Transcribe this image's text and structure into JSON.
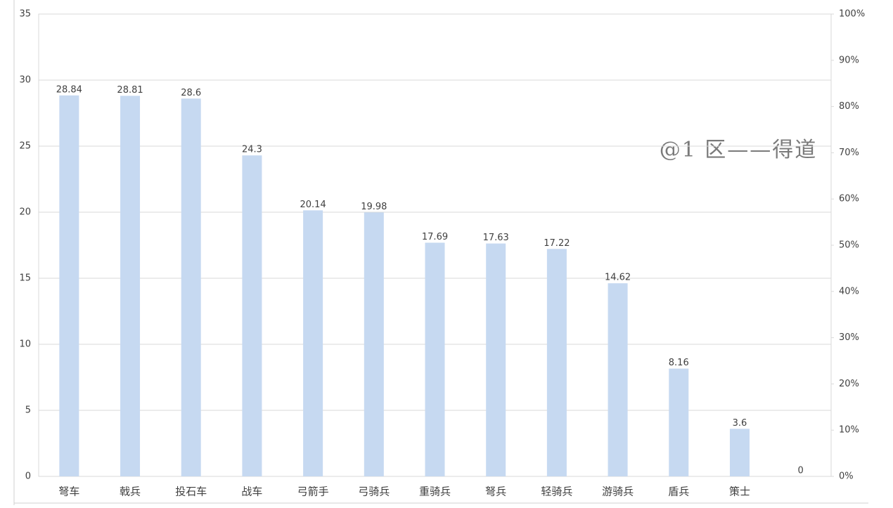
{
  "chart_data": {
    "type": "bar",
    "categories": [
      "弩车",
      "戟兵",
      "投石车",
      "战车",
      "弓箭手",
      "弓骑兵",
      "重骑兵",
      "弩兵",
      "轻骑兵",
      "游骑兵",
      "盾兵",
      "策士",
      null
    ],
    "values": [
      28.84,
      28.81,
      28.6,
      24.3,
      20.14,
      19.98,
      17.69,
      17.63,
      17.22,
      14.62,
      8.16,
      3.6,
      0
    ],
    "color": "#c6d9f1",
    "ylim": [
      0,
      35
    ],
    "yticks": [
      0,
      5,
      10,
      15,
      20,
      25,
      30,
      35
    ],
    "y2lim": [
      0,
      100
    ],
    "y2ticks": [
      {
        "value": 0,
        "label": "0%"
      },
      {
        "value": 10,
        "label": "10%"
      },
      {
        "value": 20,
        "label": "20%"
      },
      {
        "value": 30,
        "label": "30%"
      },
      {
        "value": 40,
        "label": "40%"
      },
      {
        "value": 50,
        "label": "50%"
      },
      {
        "value": 60,
        "label": "60%"
      },
      {
        "value": 70,
        "label": "70%"
      },
      {
        "value": 80,
        "label": "80%"
      },
      {
        "value": 90,
        "label": "90%"
      },
      {
        "value": 100,
        "label": "100%"
      }
    ],
    "grid": true,
    "annotation": "@1 区——得道"
  }
}
